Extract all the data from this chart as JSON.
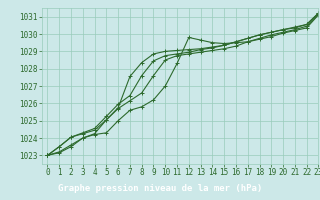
{
  "title": "Graphe pression niveau de la mer (hPa)",
  "xlim": [
    -0.5,
    23
  ],
  "ylim": [
    1022.5,
    1031.5
  ],
  "yticks": [
    1023,
    1024,
    1025,
    1026,
    1027,
    1028,
    1029,
    1030,
    1031
  ],
  "xticks": [
    0,
    1,
    2,
    3,
    4,
    5,
    6,
    7,
    8,
    9,
    10,
    11,
    12,
    13,
    14,
    15,
    16,
    17,
    18,
    19,
    20,
    21,
    22,
    23
  ],
  "bg_color": "#cce8e8",
  "grid_color": "#99ccbb",
  "line_color": "#2d6a2d",
  "title_bg": "#2d6a2d",
  "title_fg": "#ffffff",
  "lines": [
    [
      1023.0,
      1023.15,
      1023.5,
      1024.0,
      1024.2,
      1024.3,
      1025.0,
      1025.6,
      1025.8,
      1026.2,
      1027.0,
      1028.3,
      1029.8,
      1029.65,
      1029.5,
      1029.45,
      1029.5,
      1029.55,
      1029.7,
      1029.85,
      1030.05,
      1030.2,
      1030.35,
      1031.1
    ],
    [
      1023.0,
      1023.2,
      1023.6,
      1024.0,
      1024.25,
      1025.05,
      1025.7,
      1026.15,
      1026.6,
      1027.6,
      1028.5,
      1028.75,
      1028.85,
      1028.95,
      1029.05,
      1029.15,
      1029.3,
      1029.55,
      1029.75,
      1029.95,
      1030.1,
      1030.25,
      1030.45,
      1031.15
    ],
    [
      1023.0,
      1023.5,
      1024.05,
      1024.3,
      1024.55,
      1025.25,
      1025.95,
      1026.45,
      1027.6,
      1028.45,
      1028.75,
      1028.85,
      1028.95,
      1029.1,
      1029.2,
      1029.35,
      1029.55,
      1029.75,
      1029.95,
      1030.1,
      1030.25,
      1030.4,
      1030.55,
      1031.2
    ],
    [
      1023.0,
      1023.5,
      1024.05,
      1024.25,
      1024.45,
      1025.05,
      1025.75,
      1027.55,
      1028.35,
      1028.85,
      1029.0,
      1029.05,
      1029.1,
      1029.15,
      1029.25,
      1029.35,
      1029.55,
      1029.75,
      1029.95,
      1030.1,
      1030.25,
      1030.35,
      1030.55,
      1031.2
    ]
  ],
  "marker": "+",
  "markersize": 3.5,
  "linewidth": 0.8,
  "tick_fontsize": 5.5,
  "title_fontsize": 6.5
}
